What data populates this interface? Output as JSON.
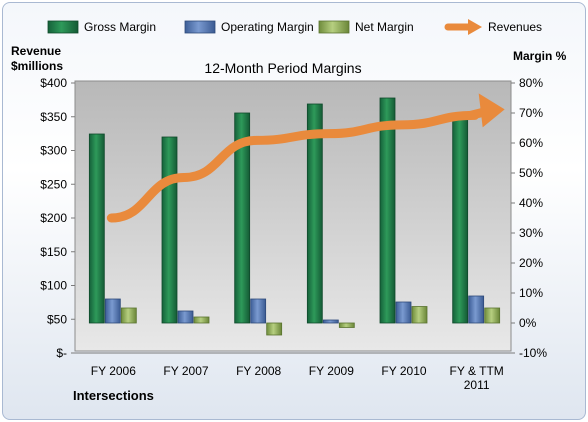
{
  "chart_data": {
    "type": "bar",
    "title": "12-Month Period Margins",
    "categories": [
      "FY 2006",
      "FY 2007",
      "FY 2008",
      "FY 2009",
      "FY 2010",
      "FY & TTM 2011"
    ],
    "y_left": {
      "label_line1": "Revenue",
      "label_line2": "$millions",
      "range": [
        0,
        400
      ],
      "ticks": [
        "$-",
        "$50",
        "$100",
        "$150",
        "$200",
        "$250",
        "$300",
        "$350",
        "$400"
      ]
    },
    "y_right": {
      "label": "Margin %",
      "range": [
        -10,
        80
      ],
      "ticks": [
        "-10%",
        "0%",
        "10%",
        "20%",
        "30%",
        "40%",
        "50%",
        "60%",
        "70%",
        "80%"
      ]
    },
    "series": [
      {
        "name": "Gross Margin",
        "axis": "right",
        "color": "#1f7a45",
        "values": [
          63,
          62,
          70,
          73,
          75,
          70
        ]
      },
      {
        "name": "Operating Margin",
        "axis": "right",
        "color": "#4f73b0",
        "values": [
          8,
          4,
          8,
          1,
          7,
          9
        ]
      },
      {
        "name": "Net Margin",
        "axis": "right",
        "color": "#8fae5a",
        "values": [
          5,
          2,
          -4,
          -1.5,
          5.5,
          5
        ]
      },
      {
        "name": "Revenues",
        "axis": "left",
        "type": "line",
        "color": "#e98a3c",
        "values": [
          200,
          260,
          315,
          325,
          338,
          352
        ]
      }
    ],
    "grid": false,
    "legend": "top",
    "footer": "Intersections"
  }
}
